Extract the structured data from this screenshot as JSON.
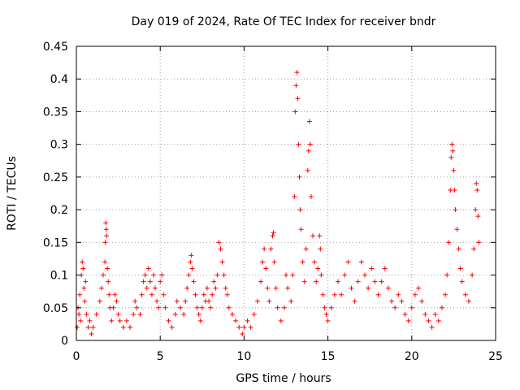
{
  "chart_data": {
    "type": "scatter",
    "title": "Day 019 of 2024, Rate Of TEC Index for receiver bndr",
    "xlabel": "GPS time / hours",
    "ylabel": "ROTI / TECUs",
    "xlim": [
      0,
      25
    ],
    "ylim": [
      0,
      0.45
    ],
    "xticks": [
      0,
      5,
      10,
      15,
      20,
      25
    ],
    "xtick_labels": [
      "0",
      "5",
      "10",
      "15",
      "20",
      "25"
    ],
    "yticks": [
      0,
      0.05,
      0.1,
      0.15,
      0.2,
      0.25,
      0.3,
      0.35,
      0.4,
      0.45
    ],
    "ytick_labels": [
      "0",
      "0.05",
      "0.1",
      "0.15",
      "0.2",
      "0.25",
      "0.3",
      "0.35",
      "0.4",
      "0.45"
    ],
    "grid": true,
    "marker": "+",
    "series": [
      {
        "name": "ROTI",
        "color": "#ff0000",
        "points": [
          [
            0.05,
            0.02
          ],
          [
            0.1,
            0.05
          ],
          [
            0.15,
            0.04
          ],
          [
            0.2,
            0.07
          ],
          [
            0.25,
            0.03
          ],
          [
            0.3,
            0.1
          ],
          [
            0.35,
            0.12
          ],
          [
            0.4,
            0.11
          ],
          [
            0.45,
            0.08
          ],
          [
            0.5,
            0.06
          ],
          [
            0.55,
            0.09
          ],
          [
            0.6,
            0.04
          ],
          [
            0.7,
            0.02
          ],
          [
            0.8,
            0.03
          ],
          [
            0.9,
            0.01
          ],
          [
            1.0,
            0.02
          ],
          [
            1.2,
            0.04
          ],
          [
            1.4,
            0.06
          ],
          [
            1.5,
            0.08
          ],
          [
            1.6,
            0.1
          ],
          [
            1.7,
            0.12
          ],
          [
            1.72,
            0.15
          ],
          [
            1.75,
            0.18
          ],
          [
            1.78,
            0.17
          ],
          [
            1.8,
            0.16
          ],
          [
            1.85,
            0.11
          ],
          [
            1.9,
            0.09
          ],
          [
            1.95,
            0.07
          ],
          [
            2.0,
            0.05
          ],
          [
            2.1,
            0.03
          ],
          [
            2.2,
            0.05
          ],
          [
            2.3,
            0.07
          ],
          [
            2.4,
            0.06
          ],
          [
            2.5,
            0.04
          ],
          [
            2.6,
            0.03
          ],
          [
            2.8,
            0.02
          ],
          [
            3.0,
            0.03
          ],
          [
            3.2,
            0.02
          ],
          [
            3.4,
            0.04
          ],
          [
            3.5,
            0.06
          ],
          [
            3.6,
            0.05
          ],
          [
            3.8,
            0.04
          ],
          [
            3.9,
            0.07
          ],
          [
            4.0,
            0.09
          ],
          [
            4.1,
            0.1
          ],
          [
            4.2,
            0.08
          ],
          [
            4.3,
            0.11
          ],
          [
            4.4,
            0.09
          ],
          [
            4.5,
            0.07
          ],
          [
            4.6,
            0.1
          ],
          [
            4.7,
            0.08
          ],
          [
            4.8,
            0.06
          ],
          [
            4.9,
            0.05
          ],
          [
            5.0,
            0.09
          ],
          [
            5.1,
            0.1
          ],
          [
            5.2,
            0.07
          ],
          [
            5.3,
            0.05
          ],
          [
            5.5,
            0.03
          ],
          [
            5.7,
            0.02
          ],
          [
            5.9,
            0.04
          ],
          [
            6.0,
            0.06
          ],
          [
            6.2,
            0.05
          ],
          [
            6.4,
            0.04
          ],
          [
            6.5,
            0.06
          ],
          [
            6.6,
            0.08
          ],
          [
            6.7,
            0.1
          ],
          [
            6.8,
            0.12
          ],
          [
            6.85,
            0.13
          ],
          [
            6.9,
            0.11
          ],
          [
            7.0,
            0.09
          ],
          [
            7.1,
            0.07
          ],
          [
            7.2,
            0.05
          ],
          [
            7.3,
            0.04
          ],
          [
            7.4,
            0.03
          ],
          [
            7.5,
            0.05
          ],
          [
            7.6,
            0.07
          ],
          [
            7.7,
            0.06
          ],
          [
            7.8,
            0.08
          ],
          [
            7.9,
            0.06
          ],
          [
            8.0,
            0.05
          ],
          [
            8.1,
            0.07
          ],
          [
            8.2,
            0.09
          ],
          [
            8.3,
            0.08
          ],
          [
            8.4,
            0.1
          ],
          [
            8.5,
            0.15
          ],
          [
            8.6,
            0.14
          ],
          [
            8.7,
            0.12
          ],
          [
            8.8,
            0.1
          ],
          [
            8.9,
            0.08
          ],
          [
            9.0,
            0.07
          ],
          [
            9.1,
            0.05
          ],
          [
            9.3,
            0.04
          ],
          [
            9.5,
            0.03
          ],
          [
            9.7,
            0.02
          ],
          [
            9.9,
            0.01
          ],
          [
            10.0,
            0.02
          ],
          [
            10.2,
            0.03
          ],
          [
            10.4,
            0.02
          ],
          [
            10.6,
            0.04
          ],
          [
            10.8,
            0.06
          ],
          [
            11.0,
            0.09
          ],
          [
            11.1,
            0.12
          ],
          [
            11.2,
            0.14
          ],
          [
            11.3,
            0.11
          ],
          [
            11.4,
            0.08
          ],
          [
            11.5,
            0.06
          ],
          [
            11.6,
            0.14
          ],
          [
            11.7,
            0.16
          ],
          [
            11.75,
            0.165
          ],
          [
            11.8,
            0.12
          ],
          [
            11.9,
            0.08
          ],
          [
            12.0,
            0.05
          ],
          [
            12.2,
            0.03
          ],
          [
            12.4,
            0.05
          ],
          [
            12.5,
            0.1
          ],
          [
            12.6,
            0.08
          ],
          [
            12.8,
            0.06
          ],
          [
            12.9,
            0.1
          ],
          [
            13.0,
            0.22
          ],
          [
            13.05,
            0.35
          ],
          [
            13.1,
            0.39
          ],
          [
            13.15,
            0.41
          ],
          [
            13.2,
            0.37
          ],
          [
            13.25,
            0.3
          ],
          [
            13.3,
            0.25
          ],
          [
            13.35,
            0.2
          ],
          [
            13.4,
            0.17
          ],
          [
            13.5,
            0.12
          ],
          [
            13.6,
            0.09
          ],
          [
            13.7,
            0.14
          ],
          [
            13.8,
            0.26
          ],
          [
            13.85,
            0.29
          ],
          [
            13.9,
            0.335
          ],
          [
            13.95,
            0.3
          ],
          [
            14.0,
            0.22
          ],
          [
            14.1,
            0.16
          ],
          [
            14.2,
            0.12
          ],
          [
            14.3,
            0.09
          ],
          [
            14.4,
            0.11
          ],
          [
            14.5,
            0.16
          ],
          [
            14.55,
            0.14
          ],
          [
            14.6,
            0.1
          ],
          [
            14.7,
            0.07
          ],
          [
            14.8,
            0.05
          ],
          [
            14.9,
            0.04
          ],
          [
            15.0,
            0.03
          ],
          [
            15.2,
            0.05
          ],
          [
            15.4,
            0.07
          ],
          [
            15.6,
            0.09
          ],
          [
            15.8,
            0.07
          ],
          [
            16.0,
            0.1
          ],
          [
            16.2,
            0.12
          ],
          [
            16.4,
            0.08
          ],
          [
            16.6,
            0.06
          ],
          [
            16.8,
            0.09
          ],
          [
            17.0,
            0.12
          ],
          [
            17.2,
            0.1
          ],
          [
            17.4,
            0.08
          ],
          [
            17.6,
            0.11
          ],
          [
            17.8,
            0.09
          ],
          [
            18.0,
            0.07
          ],
          [
            18.2,
            0.09
          ],
          [
            18.4,
            0.11
          ],
          [
            18.6,
            0.08
          ],
          [
            18.8,
            0.06
          ],
          [
            19.0,
            0.05
          ],
          [
            19.2,
            0.07
          ],
          [
            19.4,
            0.06
          ],
          [
            19.6,
            0.04
          ],
          [
            19.8,
            0.03
          ],
          [
            20.0,
            0.05
          ],
          [
            20.2,
            0.07
          ],
          [
            20.4,
            0.08
          ],
          [
            20.6,
            0.06
          ],
          [
            20.8,
            0.04
          ],
          [
            21.0,
            0.03
          ],
          [
            21.2,
            0.02
          ],
          [
            21.4,
            0.04
          ],
          [
            21.6,
            0.03
          ],
          [
            21.8,
            0.05
          ],
          [
            22.0,
            0.07
          ],
          [
            22.1,
            0.1
          ],
          [
            22.2,
            0.15
          ],
          [
            22.3,
            0.23
          ],
          [
            22.35,
            0.28
          ],
          [
            22.4,
            0.3
          ],
          [
            22.45,
            0.29
          ],
          [
            22.5,
            0.26
          ],
          [
            22.55,
            0.23
          ],
          [
            22.6,
            0.2
          ],
          [
            22.7,
            0.17
          ],
          [
            22.8,
            0.14
          ],
          [
            22.9,
            0.11
          ],
          [
            23.0,
            0.09
          ],
          [
            23.2,
            0.07
          ],
          [
            23.4,
            0.06
          ],
          [
            23.6,
            0.1
          ],
          [
            23.7,
            0.14
          ],
          [
            23.8,
            0.2
          ],
          [
            23.85,
            0.24
          ],
          [
            23.9,
            0.23
          ],
          [
            23.95,
            0.19
          ],
          [
            24.0,
            0.15
          ]
        ]
      }
    ]
  }
}
